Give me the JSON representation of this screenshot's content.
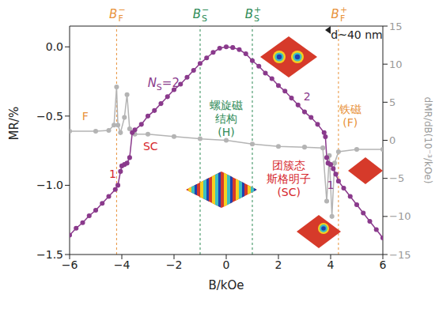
{
  "chart_data": {
    "type": "line",
    "x_label": "B/kOe",
    "y_label": "MR/%",
    "y2_label": "dMR/dB(10⁻³/kOe)",
    "xlim": [
      -6,
      6
    ],
    "xticks": [
      {
        "value": -6,
        "label": "−6"
      },
      {
        "value": -4,
        "label": "−4"
      },
      {
        "value": -2,
        "label": "−2"
      },
      0,
      2,
      4,
      6
    ],
    "ylim": [
      -1.5,
      0.15
    ],
    "yticks": [
      {
        "value": -1.5,
        "label": "−1.5"
      },
      {
        "value": -1,
        "label": "−1.0"
      },
      {
        "value": -0.5,
        "label": "−0.5"
      },
      {
        "value": 0,
        "label": "0.0"
      }
    ],
    "y2lim": [
      -15,
      15
    ],
    "y2ticks": [
      {
        "value": -15,
        "label": "−15"
      },
      {
        "value": -10,
        "label": "−10"
      },
      {
        "value": -5,
        "label": "−5"
      },
      0,
      5,
      10,
      15
    ],
    "grid": false,
    "series": [
      {
        "name": "MR",
        "color": "#8a3a8c",
        "marker": "circle",
        "x": [
          -6,
          -5.75,
          -5.5,
          -5.25,
          -5,
          -4.75,
          -4.5,
          -4.25,
          -4.15,
          -4.05,
          -4,
          -3.9,
          -3.8,
          -3.7,
          -3.6,
          -3.5,
          -3.25,
          -3,
          -2.75,
          -2.5,
          -2.25,
          -2,
          -1.75,
          -1.5,
          -1.25,
          -1,
          -0.75,
          -0.5,
          -0.25,
          0,
          0.25,
          0.5,
          0.75,
          1,
          1.25,
          1.5,
          1.75,
          2,
          2.25,
          2.5,
          2.75,
          3,
          3.25,
          3.5,
          3.75,
          3.8,
          3.85,
          3.9,
          4,
          4.1,
          4.2,
          4.3,
          4.5,
          4.75,
          5,
          5.25,
          5.5,
          5.75,
          6
        ],
        "values": [
          -1.36,
          -1.31,
          -1.27,
          -1.22,
          -1.18,
          -1.13,
          -1.08,
          -1.03,
          -1.0,
          -0.9,
          -0.86,
          -0.85,
          -0.84,
          -0.8,
          -0.62,
          -0.6,
          -0.56,
          -0.5,
          -0.46,
          -0.41,
          -0.36,
          -0.31,
          -0.27,
          -0.22,
          -0.17,
          -0.12,
          -0.08,
          -0.04,
          -0.01,
          0,
          -0.005,
          -0.02,
          -0.05,
          -0.1,
          -0.14,
          -0.19,
          -0.23,
          -0.28,
          -0.32,
          -0.37,
          -0.42,
          -0.47,
          -0.51,
          -0.56,
          -0.62,
          -0.65,
          -0.8,
          -0.84,
          -0.85,
          -0.88,
          -0.92,
          -0.97,
          -1.02,
          -1.08,
          -1.14,
          -1.2,
          -1.26,
          -1.32,
          -1.38
        ]
      },
      {
        "name": "dMR/dB",
        "color": "#b4b4b4",
        "marker": "circle",
        "axis": "y2",
        "x": [
          -6,
          -5,
          -4.5,
          -4.3,
          -4.2,
          -4.15,
          -4.05,
          -3.9,
          -3.8,
          -3.7,
          -3.5,
          -3,
          -2,
          -1,
          0,
          1,
          2,
          3,
          3.7,
          3.85,
          3.95,
          4.05,
          4.15,
          4.3,
          5,
          6
        ],
        "values": [
          1.2,
          1.2,
          1.3,
          2,
          7,
          2,
          1,
          3,
          6,
          1.5,
          0.8,
          0.8,
          0.5,
          0.2,
          0,
          -0.5,
          -0.8,
          -0.9,
          -1,
          -8,
          -2,
          -10,
          -3,
          -1.5,
          -1.2,
          -1.2
        ]
      }
    ],
    "vlines": [
      {
        "x": -4.2,
        "label": "B",
        "sub": "F",
        "sup": "−",
        "color": "#e8923a",
        "line_style": "dashed"
      },
      {
        "x": -1,
        "label": "B",
        "sub": "S",
        "sup": "−",
        "color": "#2e8b57",
        "line_style": "dashed"
      },
      {
        "x": 1,
        "label": "B",
        "sub": "S",
        "sup": "+",
        "color": "#2e8b57",
        "line_style": "dashed"
      },
      {
        "x": 4.3,
        "label": "B",
        "sub": "F",
        "sup": "+",
        "color": "#e8923a",
        "line_style": "dashed"
      }
    ],
    "annotations": [
      {
        "lines": [
          "F"
        ],
        "x": -5.4,
        "y": -0.5,
        "color": "#e8923a"
      },
      {
        "lines": [
          "1"
        ],
        "x": -4.35,
        "y": -0.92,
        "color": "#d6272d"
      },
      {
        "lines": [
          "SC"
        ],
        "x": -2.9,
        "y": -0.72,
        "color": "#d6272d"
      },
      {
        "text": "N",
        "sub": "S",
        "suffix": "=2",
        "x": -2.4,
        "y": -0.26,
        "color": "#8a3a8c"
      },
      {
        "lines": [
          "2"
        ],
        "x": 3.1,
        "y": -0.36,
        "color": "#8a3a8c"
      },
      {
        "lines": [
          "螺旋磁",
          "结构",
          "(H)"
        ],
        "x": 0,
        "y": -0.52,
        "color": "#2e8b57"
      },
      {
        "lines": [
          "铁磁",
          "(F)"
        ],
        "x": 4.75,
        "y": -0.5,
        "color": "#e8923a"
      },
      {
        "lines": [
          "团簇态",
          "斯格明子",
          "(SC)"
        ],
        "x": 2.4,
        "y": -0.95,
        "color": "#d6272d"
      },
      {
        "lines": [
          "1"
        ],
        "x": 4.0,
        "y": -1.0,
        "color": "#8a3a8c"
      },
      {
        "lines": [
          "d~40 nm"
        ],
        "x": 5.0,
        "y": 0.09,
        "color": "#222222"
      }
    ]
  }
}
